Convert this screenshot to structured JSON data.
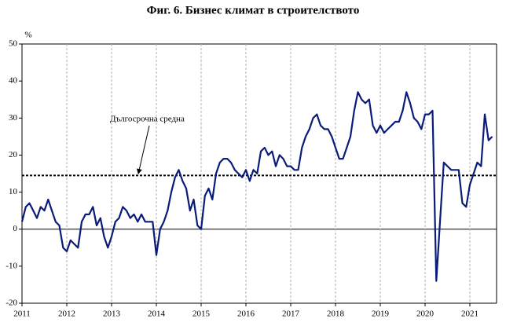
{
  "chart_data": {
    "type": "line",
    "title": "Фиг. 6. Бизнес климат в строителството",
    "y_label": "%",
    "categories": [
      "2011",
      null,
      null,
      null,
      null,
      null,
      null,
      null,
      null,
      null,
      null,
      null,
      "2012",
      null,
      null,
      null,
      null,
      null,
      null,
      null,
      null,
      null,
      null,
      null,
      "2013",
      null,
      null,
      null,
      null,
      null,
      null,
      null,
      null,
      null,
      null,
      null,
      "2014",
      null,
      null,
      null,
      null,
      null,
      null,
      null,
      null,
      null,
      null,
      null,
      "2015",
      null,
      null,
      null,
      null,
      null,
      null,
      null,
      null,
      null,
      null,
      null,
      "2016",
      null,
      null,
      null,
      null,
      null,
      null,
      null,
      null,
      null,
      null,
      null,
      "2017",
      null,
      null,
      null,
      null,
      null,
      null,
      null,
      null,
      null,
      null,
      null,
      "2018",
      null,
      null,
      null,
      null,
      null,
      null,
      null,
      null,
      null,
      null,
      null,
      "2019",
      null,
      null,
      null,
      null,
      null,
      null,
      null,
      null,
      null,
      null,
      null,
      "2020",
      null,
      null,
      null,
      null,
      null,
      null,
      null,
      null,
      null,
      null,
      null,
      "2021",
      null,
      null,
      null,
      null,
      null,
      null
    ],
    "series": [
      {
        "name": "Бизнес климат в строителството",
        "color": "#0a1b7a",
        "values": [
          2,
          6,
          7,
          5,
          3,
          6,
          5,
          8,
          5,
          2,
          1,
          -5,
          -6,
          -3,
          -4,
          -5,
          2,
          4,
          4,
          6,
          1,
          3,
          -2,
          -5,
          -2,
          2,
          3,
          6,
          5,
          3,
          4,
          2,
          4,
          2,
          2,
          2,
          -7,
          0,
          2,
          5,
          10,
          14,
          16,
          13,
          11,
          5,
          8,
          1,
          0,
          9,
          11,
          8,
          15,
          18,
          19,
          19,
          18,
          16,
          15,
          14,
          16,
          13,
          16,
          15,
          21,
          22,
          20,
          21,
          17,
          20,
          19,
          17,
          17,
          16,
          16,
          22,
          25,
          27,
          30,
          31,
          28,
          27,
          27,
          25,
          22,
          19,
          19,
          22,
          25,
          32,
          37,
          35,
          34,
          35,
          28,
          26,
          28,
          26,
          27,
          28,
          29,
          29,
          32,
          37,
          34,
          30,
          29,
          27,
          31,
          31,
          32,
          -14,
          2,
          18,
          17,
          16,
          16,
          16,
          7,
          6,
          12,
          15,
          18,
          17,
          31,
          24,
          25
        ]
      }
    ],
    "mean": {
      "value": 14.5,
      "label": "Дългосрочна средна"
    },
    "ylim": [
      -20,
      50
    ],
    "yticks": [
      -20,
      -10,
      0,
      10,
      20,
      30,
      40,
      50
    ],
    "grid": true
  }
}
